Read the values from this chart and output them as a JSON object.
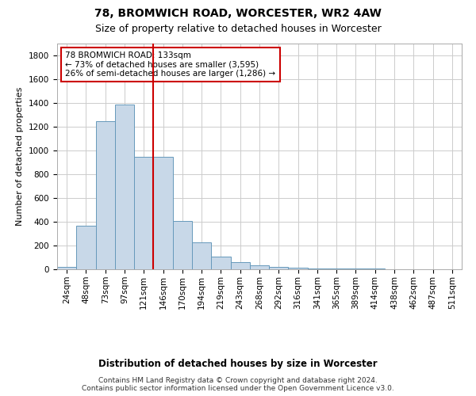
{
  "title1": "78, BROMWICH ROAD, WORCESTER, WR2 4AW",
  "title2": "Size of property relative to detached houses in Worcester",
  "xlabel": "Distribution of detached houses by size in Worcester",
  "ylabel": "Number of detached properties",
  "footnote": "Contains HM Land Registry data © Crown copyright and database right 2024.\nContains public sector information licensed under the Open Government Licence v3.0.",
  "categories": [
    "24sqm",
    "48sqm",
    "73sqm",
    "97sqm",
    "121sqm",
    "146sqm",
    "170sqm",
    "194sqm",
    "219sqm",
    "243sqm",
    "268sqm",
    "292sqm",
    "316sqm",
    "341sqm",
    "365sqm",
    "389sqm",
    "414sqm",
    "438sqm",
    "462sqm",
    "487sqm",
    "511sqm"
  ],
  "values": [
    20,
    370,
    1250,
    1390,
    950,
    950,
    410,
    230,
    110,
    60,
    35,
    20,
    15,
    10,
    7,
    5,
    4,
    3,
    3,
    3,
    3
  ],
  "bar_color": "#c8d8e8",
  "bar_edge_color": "#6699bb",
  "red_line_x": 4.5,
  "annotation_text": "78 BROMWICH ROAD: 133sqm\n← 73% of detached houses are smaller (3,595)\n26% of semi-detached houses are larger (1,286) →",
  "annotation_box_color": "#ffffff",
  "annotation_box_edge_color": "#cc0000",
  "ylim": [
    0,
    1900
  ],
  "yticks": [
    0,
    200,
    400,
    600,
    800,
    1000,
    1200,
    1400,
    1600,
    1800
  ],
  "background_color": "#ffffff",
  "grid_color": "#cccccc",
  "title1_fontsize": 10,
  "title2_fontsize": 9,
  "xlabel_fontsize": 8.5,
  "ylabel_fontsize": 8,
  "tick_fontsize": 7.5,
  "annot_fontsize": 7.5,
  "footnote_fontsize": 6.5
}
